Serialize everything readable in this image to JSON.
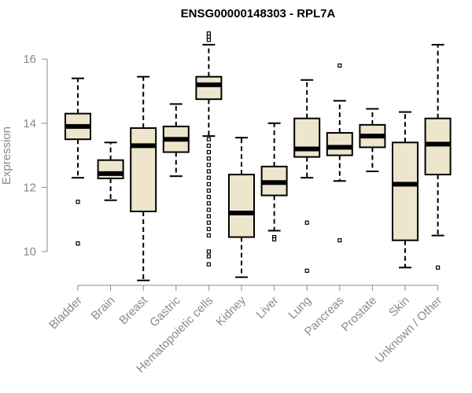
{
  "chart_data": {
    "type": "boxplot",
    "title": "ENSG00000148303 - RPL7A",
    "xlabel": "",
    "ylabel": "Expression",
    "ylim": [
      9,
      17
    ],
    "yticks": [
      10,
      12,
      14,
      16
    ],
    "box_color": "#ede6cd",
    "axis_color": "#8a8a8a",
    "categories": [
      "Bladder",
      "Brain",
      "Breast",
      "Gastric",
      "Hematopoietic cells",
      "Kidney",
      "Liver",
      "Lung",
      "Pancreas",
      "Prostate",
      "Skin",
      "Unknown / Other"
    ],
    "boxes": [
      {
        "name": "Bladder",
        "whisker_low": 12.3,
        "q1": 13.5,
        "median": 13.9,
        "q3": 14.3,
        "whisker_high": 15.4,
        "outliers": [
          11.55,
          10.25
        ]
      },
      {
        "name": "Brain",
        "whisker_low": 11.6,
        "q1": 12.28,
        "median": 12.43,
        "q3": 12.85,
        "whisker_high": 13.4,
        "outliers": []
      },
      {
        "name": "Breast",
        "whisker_low": 9.1,
        "q1": 11.25,
        "median": 13.3,
        "q3": 13.85,
        "whisker_high": 15.45,
        "outliers": []
      },
      {
        "name": "Gastric",
        "whisker_low": 12.35,
        "q1": 13.1,
        "median": 13.5,
        "q3": 13.9,
        "whisker_high": 14.6,
        "outliers": []
      },
      {
        "name": "Hematopoietic cells",
        "whisker_low": 13.6,
        "q1": 14.75,
        "median": 15.2,
        "q3": 15.45,
        "whisker_high": 16.45,
        "outliers": [
          16.8,
          16.7,
          16.6,
          13.5,
          13.3,
          13.1,
          12.9,
          12.7,
          12.5,
          12.3,
          12.1,
          11.9,
          11.7,
          11.5,
          11.3,
          11.1,
          10.9,
          10.7,
          10.5,
          10.0,
          9.85,
          9.6
        ]
      },
      {
        "name": "Kidney",
        "whisker_low": 9.2,
        "q1": 10.45,
        "median": 11.2,
        "q3": 12.4,
        "whisker_high": 13.55,
        "outliers": []
      },
      {
        "name": "Liver",
        "whisker_low": 10.65,
        "q1": 11.75,
        "median": 12.15,
        "q3": 12.65,
        "whisker_high": 14.0,
        "outliers": [
          10.45,
          10.38
        ]
      },
      {
        "name": "Lung",
        "whisker_low": 12.3,
        "q1": 12.95,
        "median": 13.2,
        "q3": 14.15,
        "whisker_high": 15.35,
        "outliers": [
          10.9,
          9.4
        ]
      },
      {
        "name": "Pancreas",
        "whisker_low": 12.2,
        "q1": 13.0,
        "median": 13.25,
        "q3": 13.7,
        "whisker_high": 14.7,
        "outliers": [
          15.8,
          10.35
        ]
      },
      {
        "name": "Prostate",
        "whisker_low": 12.5,
        "q1": 13.25,
        "median": 13.6,
        "q3": 13.95,
        "whisker_high": 14.45,
        "outliers": []
      },
      {
        "name": "Skin",
        "whisker_low": 9.5,
        "q1": 10.35,
        "median": 12.1,
        "q3": 13.4,
        "whisker_high": 14.35,
        "outliers": []
      },
      {
        "name": "Unknown / Other",
        "whisker_low": 10.5,
        "q1": 12.4,
        "median": 13.35,
        "q3": 14.15,
        "whisker_high": 16.45,
        "outliers": [
          9.5
        ]
      }
    ]
  }
}
